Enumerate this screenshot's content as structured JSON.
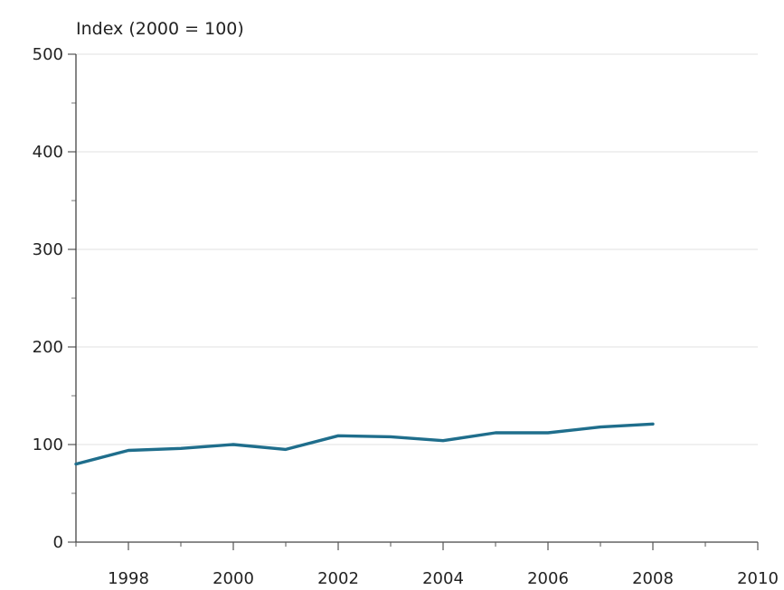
{
  "chart_data": {
    "type": "line",
    "title": "",
    "xlabel": "",
    "ylabel": "Index (2000 = 100)",
    "xlim": [
      1997,
      2010
    ],
    "ylim": [
      0,
      500
    ],
    "x_ticks": [
      "1998",
      "2000",
      "2002",
      "2004",
      "2006",
      "2008",
      "2010"
    ],
    "y_ticks": [
      "0",
      "100",
      "200",
      "300",
      "400",
      "500"
    ],
    "grid": "horizontal",
    "legend": "none",
    "series": [
      {
        "color": "#1f6e8c",
        "x": [
          1997,
          1998,
          1999,
          2000,
          2001,
          2002,
          2003,
          2004,
          2005,
          2006,
          2007,
          2008
        ],
        "values": [
          80,
          94,
          96,
          100,
          95,
          109,
          108,
          104,
          112,
          112,
          118,
          121
        ]
      }
    ]
  }
}
